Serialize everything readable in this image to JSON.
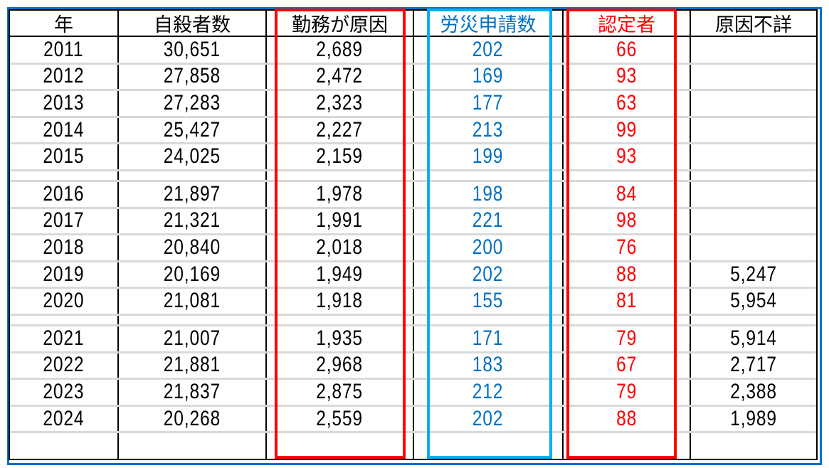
{
  "headers": [
    "年",
    "自殺者数",
    "勤務が原因",
    "労災申請数",
    "認定者",
    "原因不詳"
  ],
  "colors": {
    "default": "#000000",
    "applications": "#0070c0",
    "certified": "#ff0000",
    "red_box": "#ff0000",
    "blue_box": "#00b0f0",
    "outer_border": "#0a6fc4"
  },
  "rows": [
    [
      "2011",
      "30,651",
      "2,689",
      "202",
      "66",
      ""
    ],
    [
      "2012",
      "27,858",
      "2,472",
      "169",
      "93",
      ""
    ],
    [
      "2013",
      "27,283",
      "2,323",
      "177",
      "63",
      ""
    ],
    [
      "2014",
      "25,427",
      "2,227",
      "213",
      "99",
      ""
    ],
    [
      "2015",
      "24,025",
      "2,159",
      "199",
      "93",
      ""
    ],
    [
      "2016",
      "21,897",
      "1,978",
      "198",
      "84",
      ""
    ],
    [
      "2017",
      "21,321",
      "1,991",
      "221",
      "98",
      ""
    ],
    [
      "2018",
      "20,840",
      "2,018",
      "200",
      "76",
      ""
    ],
    [
      "2019",
      "20,169",
      "1,949",
      "202",
      "88",
      "5,247"
    ],
    [
      "2020",
      "21,081",
      "1,918",
      "155",
      "81",
      "5,954"
    ],
    [
      "2021",
      "21,007",
      "1,935",
      "171",
      "79",
      "5,914"
    ],
    [
      "2022",
      "21,881",
      "2,968",
      "183",
      "67",
      "2,717"
    ],
    [
      "2023",
      "21,837",
      "2,875",
      "212",
      "79",
      "2,388"
    ],
    [
      "2024",
      "20,268",
      "2,559",
      "202",
      "88",
      "1,989"
    ]
  ]
}
